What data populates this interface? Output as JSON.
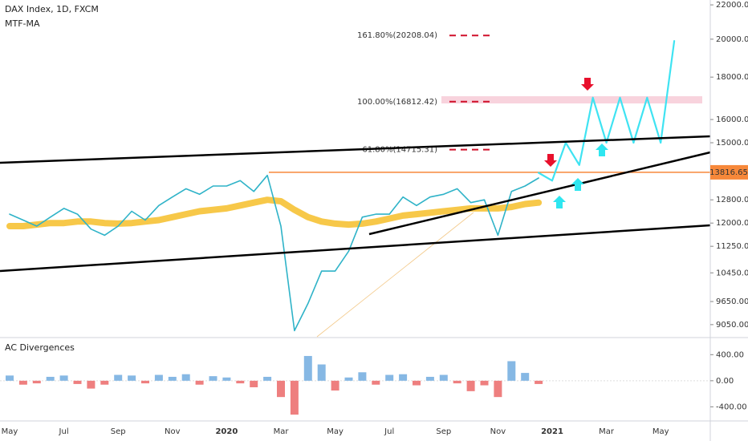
{
  "chart_data": [
    {
      "type": "line",
      "title": "DAX Index, 1D, FXCM",
      "log_scale": true,
      "grid": false,
      "categories": [
        "May",
        null,
        null,
        null,
        "Jul",
        null,
        null,
        null,
        "Sep",
        null,
        null,
        null,
        "Nov",
        null,
        null,
        null,
        "2020",
        null,
        null,
        null,
        "Mar",
        null,
        null,
        null,
        "May",
        null,
        null,
        null,
        "Jul",
        null,
        null,
        null,
        "Sep",
        null,
        null,
        null,
        "Nov",
        null,
        null,
        null,
        "2021",
        null,
        null,
        null,
        "Mar",
        null,
        null,
        null,
        "May",
        null
      ],
      "series": [
        {
          "color": "#2fb3c8",
          "values": [
            12300,
            12100,
            11900,
            12200,
            12500,
            12300,
            11800,
            11600,
            11900,
            12400,
            12100,
            12600,
            12900,
            13200,
            13000,
            13300,
            13300,
            13500,
            13100,
            13700,
            11900,
            8900,
            9600,
            10500,
            10500,
            11100,
            12200,
            12300,
            12300,
            12900,
            12600,
            12900,
            13000,
            13200,
            12700,
            12800,
            11600,
            13100,
            13300,
            13600,
            null,
            null,
            null,
            null,
            null,
            null,
            null,
            null,
            null,
            null
          ]
        },
        {
          "name": "MTF-MA",
          "color": "#f6c235",
          "values": [
            11900,
            11900,
            11950,
            12000,
            12000,
            12050,
            12050,
            12000,
            11980,
            12000,
            12050,
            12100,
            12200,
            12300,
            12400,
            12450,
            12500,
            12600,
            12700,
            12800,
            12750,
            12450,
            12200,
            12050,
            11980,
            11950,
            11980,
            12050,
            12150,
            12250,
            12300,
            12350,
            12400,
            12450,
            12500,
            12500,
            12500,
            12550,
            12650,
            12700,
            null,
            null,
            null,
            null,
            null,
            null,
            null,
            null,
            null,
            null
          ]
        },
        {
          "color": "#3fe3f2",
          "values": [
            null,
            null,
            null,
            null,
            null,
            null,
            null,
            null,
            null,
            null,
            null,
            null,
            null,
            null,
            null,
            null,
            null,
            null,
            null,
            null,
            null,
            null,
            null,
            null,
            null,
            null,
            null,
            null,
            null,
            null,
            null,
            null,
            null,
            null,
            null,
            null,
            null,
            null,
            null,
            13800,
            13500,
            15000,
            14100,
            17000,
            15000,
            17000,
            15000,
            17000,
            15000,
            19900
          ]
        }
      ],
      "ylim": [
        8750,
        22300
      ],
      "yticks": [
        {
          "value": 9050,
          "label": "9050.00"
        },
        {
          "value": 9650,
          "label": "9650.00"
        },
        {
          "value": 10450,
          "label": "10450.00"
        },
        {
          "value": 11250,
          "label": "11250.00"
        },
        {
          "value": 12000,
          "label": "12000.00"
        },
        {
          "value": 12800,
          "label": "12800.00"
        },
        {
          "value": 15000,
          "label": "15000.00"
        },
        {
          "value": 16000,
          "label": "16000.00"
        },
        {
          "value": 18000,
          "label": "18000.00"
        },
        {
          "value": 20000,
          "label": "20000.00"
        },
        {
          "value": 22000,
          "label": "22000.00"
        }
      ],
      "hline": 13816.65,
      "fib_levels": [
        {
          "value": 20208.04,
          "label": "161.80%(20208.04)"
        },
        {
          "value": 16812.42,
          "label": "100.00%(16812.42)"
        },
        {
          "value": 14715.31,
          "label": "61.80%(14715.31)"
        }
      ]
    },
    {
      "type": "bar",
      "title": "AC Divergences",
      "values": [
        80,
        -60,
        -40,
        60,
        80,
        -50,
        -120,
        -60,
        90,
        80,
        -40,
        90,
        60,
        100,
        -60,
        70,
        50,
        -40,
        -100,
        60,
        -250,
        -520,
        380,
        250,
        -150,
        50,
        130,
        -60,
        90,
        100,
        -70,
        60,
        90,
        -40,
        -160,
        -70,
        -250,
        300,
        120,
        -50
      ],
      "ylim": [
        -580,
        650
      ],
      "yticks": [
        {
          "value": 400,
          "label": "400.00"
        },
        {
          "value": 0,
          "label": "0.00"
        },
        {
          "value": -400,
          "label": "-400.00"
        }
      ],
      "positive_color": "#86b8e4",
      "negative_color": "#ee7f7f"
    }
  ]
}
